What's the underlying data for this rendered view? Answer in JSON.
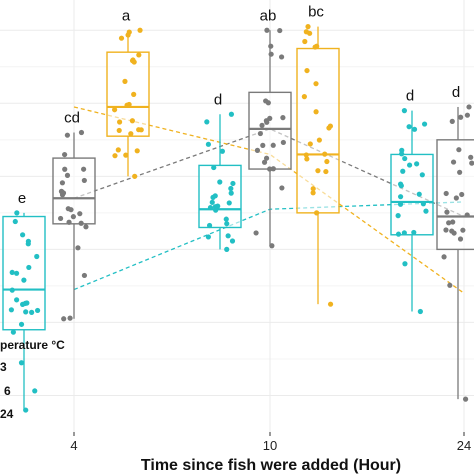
{
  "chart_data": {
    "type": "boxplot",
    "xlabel": "Time since fish were added (Hour)",
    "x_ticks": [
      "4",
      "10",
      "24"
    ],
    "legend": {
      "title_partial": "perature °C",
      "entries_partial": [
        "3",
        "6",
        "24"
      ]
    },
    "grid": true,
    "colors": {
      "teal": "#22bfc4",
      "grey": "#7a7a7a",
      "gold": "#f0b21f"
    },
    "groups": [
      {
        "name": "teal-4h",
        "color": "teal",
        "letter": "e",
        "q1": 0.38,
        "median": 0.49,
        "q3": 0.69,
        "wlow": 0.16,
        "whigh": 0.7
      },
      {
        "name": "grey-4h",
        "color": "grey",
        "letter": "cd",
        "q1": 0.67,
        "median": 0.74,
        "q3": 0.85,
        "wlow": 0.41,
        "whigh": 0.92
      },
      {
        "name": "gold-4h",
        "color": "gold",
        "letter": "a",
        "q1": 0.91,
        "median": 0.99,
        "q3": 1.14,
        "wlow": 0.8,
        "whigh": 1.2
      },
      {
        "name": "teal-10h",
        "color": "teal",
        "letter": "d",
        "q1": 0.66,
        "median": 0.71,
        "q3": 0.83,
        "wlow": 0.6,
        "whigh": 0.97
      },
      {
        "name": "grey-10h",
        "color": "grey",
        "letter": "ab",
        "q1": 0.82,
        "median": 0.93,
        "q3": 1.03,
        "wlow": 0.61,
        "whigh": 1.2
      },
      {
        "name": "gold-10h",
        "color": "gold",
        "letter": "bc",
        "q1": 0.7,
        "median": 0.86,
        "q3": 1.15,
        "wlow": 0.45,
        "whigh": 1.21
      },
      {
        "name": "teal-24h",
        "color": "teal",
        "letter": "d",
        "q1": 0.64,
        "median": 0.73,
        "q3": 0.86,
        "wlow": 0.43,
        "whigh": 0.98
      },
      {
        "name": "grey-24h",
        "color": "grey",
        "letter": "d",
        "q1": 0.6,
        "median": 0.69,
        "q3": 0.9,
        "wlow": 0.19,
        "whigh": 0.99
      }
    ],
    "trend_lines": [
      {
        "color": "teal",
        "points": [
          [
            4,
            0.49
          ],
          [
            10,
            0.71
          ],
          [
            24,
            0.73
          ]
        ]
      },
      {
        "color": "grey",
        "points": [
          [
            4,
            0.74
          ],
          [
            10,
            0.93
          ],
          [
            24,
            0.69
          ]
        ]
      },
      {
        "color": "gold",
        "points": [
          [
            4,
            0.99
          ],
          [
            10,
            0.86
          ],
          [
            24,
            0.48
          ]
        ]
      }
    ]
  }
}
